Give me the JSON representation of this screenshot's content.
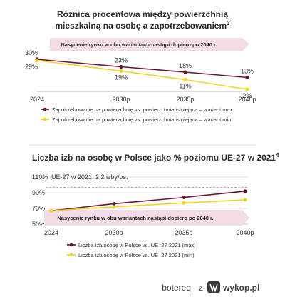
{
  "colors": {
    "max": "#6b1237",
    "min": "#f0d520",
    "banner": "#f2dde6",
    "grid": "#d8d8d8",
    "axis": "#b9b9b9"
  },
  "chart_data": [
    {
      "type": "line",
      "title": "Różnica procentowa między powierzchnią mieszkalną na osobę a zapotrzebowaniem",
      "title_line1": "Różnica procentowa między powierzchnią",
      "title_line2": "mieszkalną na osobę a zapotrzebowaniem",
      "title_footnote": "3",
      "x": [
        "2024",
        "2030p",
        "2035p",
        "2040p"
      ],
      "series": [
        {
          "name": "Zapotrzebowanie na powierzchnię vs. powierzchnia istniejąca – wariant max",
          "color_key": "max",
          "values": [
            30,
            23,
            18,
            13
          ],
          "labels": [
            "30%",
            "23%",
            "18%",
            "13%"
          ]
        },
        {
          "name": "Zapotrzebowanie na powierzchnię vs. powierzchnia istniejąca – wariant min",
          "color_key": "min",
          "values": [
            29,
            19,
            11,
            2
          ],
          "labels": [
            "29%",
            "19%",
            "11%",
            "2%"
          ]
        }
      ],
      "annotation": "Nasycenie rynku w obu wariantach nastąpi dopiero po 2040 r.",
      "ylim": [
        0,
        32
      ],
      "grid": false,
      "legend": "bottom"
    },
    {
      "type": "line",
      "title": "Liczba izb na osobę w Polsce jako % poziomu UE-27 w 2021",
      "title_footnote": "4",
      "x": [
        "2024",
        "2030p",
        "2035p",
        "2040p"
      ],
      "yticks": [
        50,
        70,
        90,
        110
      ],
      "ytick_labels": [
        "50%",
        "70%",
        "90%",
        "110%"
      ],
      "ylim": [
        50,
        110
      ],
      "series": [
        {
          "name": "Liczba izb/osobę w Polsce vs. UE–27 2021 (max)",
          "color_key": "max",
          "values": [
            67,
            76,
            84,
            92
          ]
        },
        {
          "name": "Liczba izb/osobę w Polsce vs. UE–27 2021 (min)",
          "color_key": "min",
          "values": [
            67,
            72,
            77,
            81
          ]
        }
      ],
      "reference_line": {
        "value": 97,
        "label": "UE-27 w 2021: 2,2 izby/os."
      },
      "annotation": "Nasycenie rynku w obu wariantach nastąpi dopiero po 2040 r.",
      "grid": true,
      "legend": "bottom"
    }
  ],
  "footer": {
    "user": "botereq",
    "separator": "z",
    "site": "wykop.pl"
  }
}
